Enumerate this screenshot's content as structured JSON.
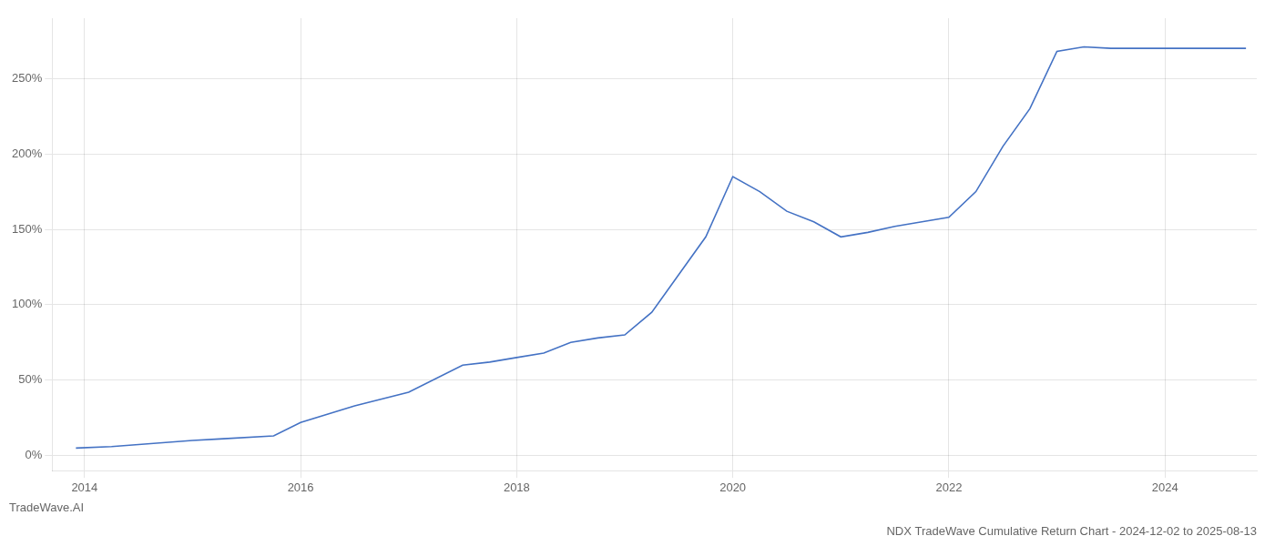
{
  "chart_data": {
    "type": "line",
    "title": "NDX TradeWave Cumulative Return Chart - 2024-12-02 to 2025-08-13",
    "annotations": [
      "TradeWave.AI"
    ],
    "x": [
      2013.92,
      2014.25,
      2015.0,
      2015.25,
      2015.75,
      2016.0,
      2016.5,
      2017.0,
      2017.5,
      2017.75,
      2018.0,
      2018.25,
      2018.5,
      2018.75,
      2019.0,
      2019.25,
      2019.5,
      2019.75,
      2020.0,
      2020.25,
      2020.5,
      2020.75,
      2021.0,
      2021.25,
      2021.5,
      2021.75,
      2022.0,
      2022.25,
      2022.5,
      2022.75,
      2023.0,
      2023.25,
      2023.5,
      2023.75,
      2024.0,
      2024.5,
      2024.75
    ],
    "values": [
      5,
      6,
      10,
      11,
      13,
      22,
      33,
      42,
      60,
      62,
      65,
      68,
      75,
      78,
      80,
      95,
      120,
      145,
      185,
      175,
      162,
      155,
      145,
      148,
      152,
      155,
      158,
      175,
      205,
      230,
      268,
      271,
      270,
      270,
      270,
      270,
      270
    ],
    "color": "#4472c4",
    "marker": "none",
    "xlim": [
      2013.7,
      2024.85
    ],
    "xticks": [
      2014,
      2016,
      2018,
      2020,
      2022,
      2024
    ],
    "ylim": [
      -10,
      290
    ],
    "yticks": [
      {
        "value": 0,
        "label": "0%"
      },
      {
        "value": 50,
        "label": "50%"
      },
      {
        "value": 100,
        "label": "100%"
      },
      {
        "value": 150,
        "label": "150%"
      },
      {
        "value": 200,
        "label": "200%"
      },
      {
        "value": 250,
        "label": "250%"
      }
    ],
    "grid": true
  }
}
